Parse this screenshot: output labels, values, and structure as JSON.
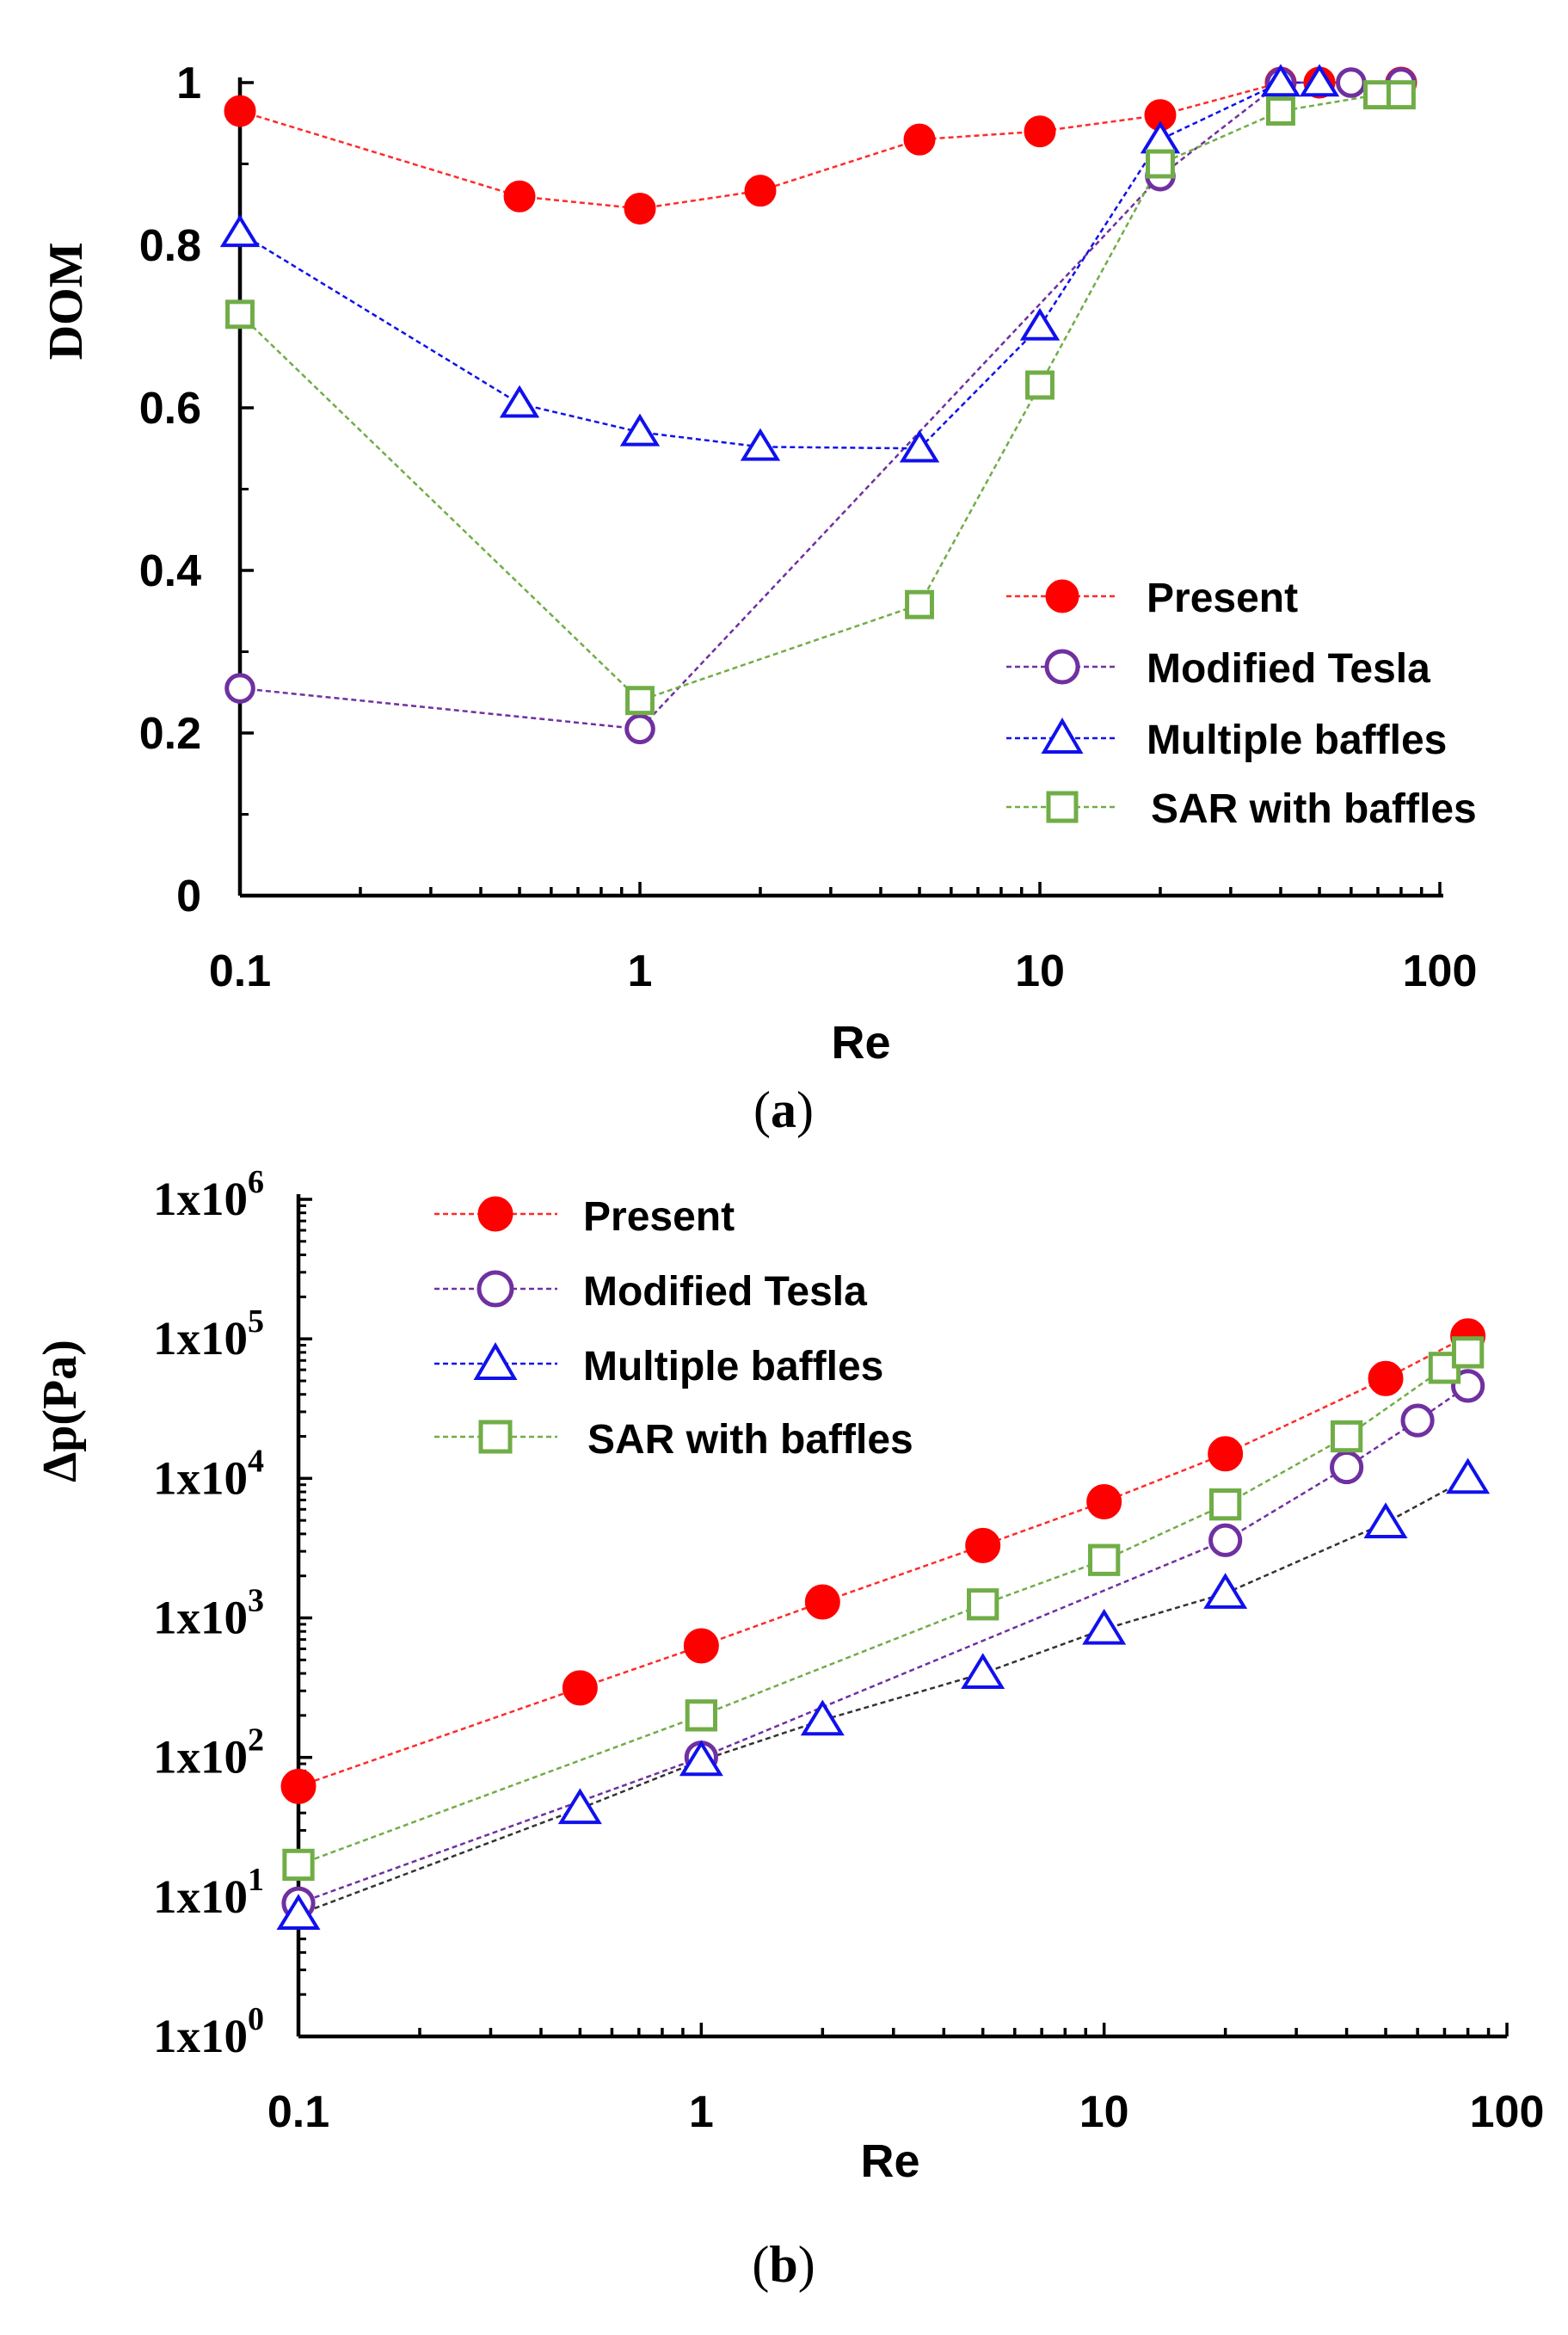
{
  "chart_data": [
    {
      "id": "a",
      "type": "line",
      "xscale": "log",
      "xlim": [
        0.1,
        100
      ],
      "ylim": [
        0,
        1
      ],
      "xlabel": "Re",
      "ylabel": "DOM",
      "panel_label": "a",
      "xticks": [
        {
          "value": 0.1,
          "label": "0.1"
        },
        {
          "value": 1,
          "label": "1"
        },
        {
          "value": 10,
          "label": "10"
        },
        {
          "value": 100,
          "label": "100"
        }
      ],
      "yticks": [
        {
          "value": 0,
          "label": "0"
        },
        {
          "value": 0.2,
          "label": "0.2"
        },
        {
          "value": 0.4,
          "label": "0.4"
        },
        {
          "value": 0.6,
          "label": "0.6"
        },
        {
          "value": 0.8,
          "label": "0.8"
        },
        {
          "value": 1,
          "label": "1"
        }
      ],
      "legend_position": "lower-right",
      "series": [
        {
          "name": "Present",
          "marker": "filled-circle",
          "color": "#ff2a2a",
          "x": [
            0.1,
            0.5,
            1,
            2,
            5,
            10,
            20,
            40,
            50,
            80
          ],
          "y": [
            0.965,
            0.86,
            0.845,
            0.867,
            0.93,
            0.94,
            0.96,
            1.0,
            1.0,
            1.0
          ]
        },
        {
          "name": "Modified Tesla",
          "marker": "open-circle",
          "color": "#7030a0",
          "x": [
            0.1,
            1,
            20,
            40,
            60,
            80
          ],
          "y": [
            0.255,
            0.205,
            0.885,
            1.0,
            1.0,
            1.0
          ]
        },
        {
          "name": "Multiple baffles",
          "marker": "open-triangle",
          "color": "#1010ee",
          "x": [
            0.1,
            0.5,
            1,
            2,
            5,
            10,
            20,
            40,
            50
          ],
          "y": [
            0.815,
            0.605,
            0.57,
            0.552,
            0.55,
            0.7,
            0.93,
            1.0,
            1.0
          ]
        },
        {
          "name": "SAR with baffles",
          "marker": "open-square",
          "color": "#70ad47",
          "x": [
            0.1,
            1,
            5,
            10,
            20,
            40,
            70,
            80
          ],
          "y": [
            0.715,
            0.24,
            0.358,
            0.628,
            0.9,
            0.965,
            0.985,
            0.985
          ]
        }
      ]
    },
    {
      "id": "b",
      "type": "line",
      "xscale": "log",
      "yscale": "log",
      "xlim": [
        0.1,
        100
      ],
      "ylim": [
        1,
        1000000
      ],
      "xlabel": "Re",
      "ylabel": "Δp(Pa)",
      "panel_label": "b",
      "xticks": [
        {
          "value": 0.1,
          "label": "0.1"
        },
        {
          "value": 1,
          "label": "1"
        },
        {
          "value": 10,
          "label": "10"
        },
        {
          "value": 100,
          "label": "100"
        }
      ],
      "yticks": [
        {
          "value": 1,
          "base": "1x10",
          "exp": "0"
        },
        {
          "value": 10,
          "base": "1x10",
          "exp": "1"
        },
        {
          "value": 100,
          "base": "1x10",
          "exp": "2"
        },
        {
          "value": 1000,
          "base": "1x10",
          "exp": "3"
        },
        {
          "value": 10000,
          "base": "1x10",
          "exp": "4"
        },
        {
          "value": 100000,
          "base": "1x10",
          "exp": "5"
        },
        {
          "value": 1000000,
          "base": "1x10",
          "exp": "6"
        }
      ],
      "legend_position": "top-left",
      "series": [
        {
          "name": "Present",
          "marker": "filled-circle",
          "color": "#ff2a2a",
          "x": [
            0.1,
            0.5,
            1,
            2,
            5,
            10,
            20,
            50,
            80
          ],
          "y": [
            62,
            315,
            630,
            1300,
            3300,
            6800,
            15000,
            52000,
            105000
          ]
        },
        {
          "name": "Modified Tesla",
          "marker": "open-circle",
          "color": "#7030a0",
          "x": [
            0.1,
            1,
            20,
            40,
            60,
            80
          ],
          "y": [
            9,
            100,
            3600,
            12000,
            26000,
            46000
          ]
        },
        {
          "name": "Multiple baffles",
          "marker": "open-triangle",
          "color": "#1010ee",
          "line_color": "#333333",
          "x": [
            0.1,
            0.5,
            1,
            2,
            5,
            10,
            20,
            50,
            80
          ],
          "y": [
            7.5,
            43,
            95,
            185,
            400,
            830,
            1500,
            4800,
            10000
          ]
        },
        {
          "name": "SAR with baffles",
          "marker": "open-square",
          "color": "#70ad47",
          "x": [
            0.1,
            1,
            5,
            10,
            20,
            40,
            70,
            80
          ],
          "y": [
            17,
            200,
            1250,
            2600,
            6500,
            20000,
            62000,
            80000
          ]
        }
      ]
    }
  ]
}
